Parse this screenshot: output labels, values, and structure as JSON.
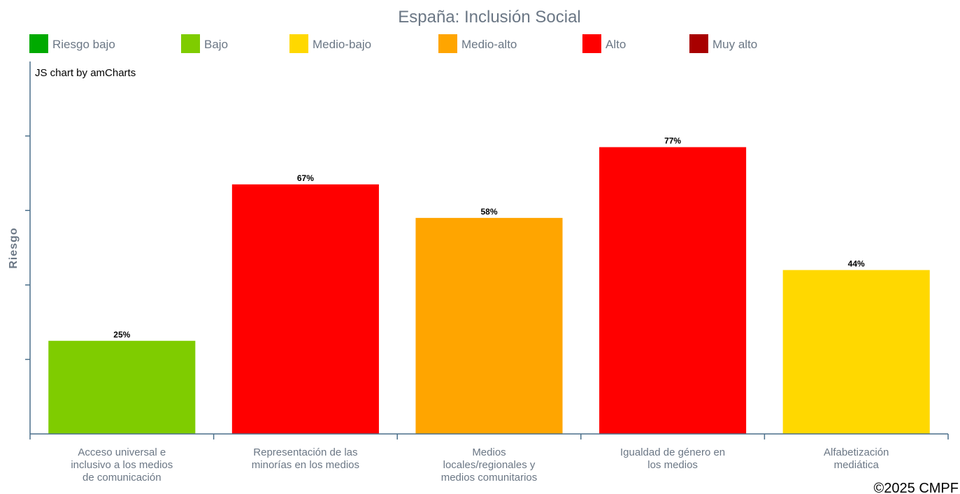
{
  "chart_data": {
    "type": "bar",
    "title": "España: Inclusión Social",
    "ylabel": "Riesgo",
    "xlabel": "",
    "ylim": [
      0,
      100
    ],
    "grid": false,
    "legend_placement": "top",
    "legend": [
      {
        "label": "Riesgo bajo",
        "color": "#00aa00"
      },
      {
        "label": "Bajo",
        "color": "#7fcc00"
      },
      {
        "label": "Medio-bajo",
        "color": "#ffd800"
      },
      {
        "label": "Medio-alto",
        "color": "#ffa500"
      },
      {
        "label": "Alto",
        "color": "#ff0000"
      },
      {
        "label": "Muy alto",
        "color": "#a80000"
      }
    ],
    "categories": [
      [
        "Acceso universal e",
        "inclusivo a los medios",
        "de comunicación"
      ],
      [
        "Representación de las",
        "minorías en los medios"
      ],
      [
        "Medios",
        "locales/regionales y",
        "medios comunitarios"
      ],
      [
        "Igualdad de género en",
        "los medios"
      ],
      [
        "Alfabetización",
        "mediática"
      ]
    ],
    "values": [
      25,
      67,
      58,
      77,
      44
    ],
    "value_labels": [
      "25%",
      "67%",
      "58%",
      "77%",
      "44%"
    ],
    "bar_colors": [
      "#7fcc00",
      "#ff0000",
      "#ffa500",
      "#ff0000",
      "#ffd800"
    ]
  },
  "watermark": "JS chart by amCharts",
  "copyright": "©2025 CMPF"
}
